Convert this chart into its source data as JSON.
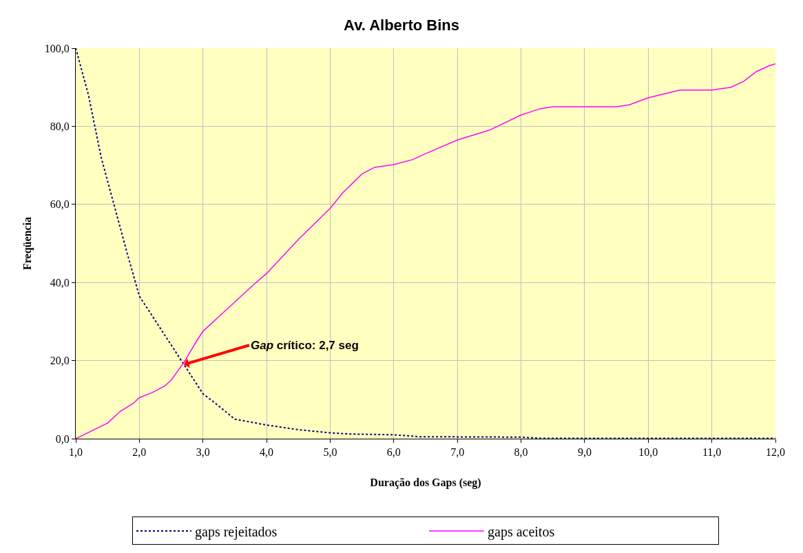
{
  "chart_data": {
    "type": "line",
    "title": "Av. Alberto Bins",
    "xlabel": "Duração dos Gaps (seg)",
    "ylabel": "Freqüencia",
    "xlim": [
      1,
      12
    ],
    "ylim": [
      0,
      100
    ],
    "xticks": [
      {
        "value": 1,
        "label": "1,0"
      },
      {
        "value": 2,
        "label": "2,0"
      },
      {
        "value": 3,
        "label": "3,0"
      },
      {
        "value": 4,
        "label": "4,0"
      },
      {
        "value": 5,
        "label": "5,0"
      },
      {
        "value": 6,
        "label": "6,0"
      },
      {
        "value": 7,
        "label": "7,0"
      },
      {
        "value": 8,
        "label": "8,0"
      },
      {
        "value": 9,
        "label": "9,0"
      },
      {
        "value": 10,
        "label": "10,0"
      },
      {
        "value": 11,
        "label": "11,0"
      },
      {
        "value": 12,
        "label": "12,0"
      }
    ],
    "yticks": [
      {
        "value": 0,
        "label": "0,0"
      },
      {
        "value": 20,
        "label": "20,0"
      },
      {
        "value": 40,
        "label": "40,0"
      },
      {
        "value": 60,
        "label": "60,0"
      },
      {
        "value": 80,
        "label": "80,0"
      },
      {
        "value": 100,
        "label": "100,0"
      }
    ],
    "grid": true,
    "legend": "bottom",
    "marker": "none",
    "series": [
      {
        "name": "gaps rejeitados",
        "color": "#000080",
        "line_style": "dotted",
        "x": [
          1.0,
          1.2,
          1.4,
          1.6,
          1.8,
          2.0,
          2.3,
          2.5,
          2.7,
          2.9,
          3.0,
          3.2,
          3.5,
          4.0,
          4.5,
          5.0,
          5.3,
          6.0,
          6.4,
          8.0,
          8.3,
          12.0
        ],
        "values": [
          100,
          88,
          72,
          60,
          48,
          36.5,
          29,
          24,
          19,
          14,
          11.5,
          9,
          5,
          3.5,
          2.3,
          1.5,
          1.2,
          1,
          0.5,
          0.4,
          0.1,
          0.1
        ]
      },
      {
        "name": "gaps aceitos",
        "color": "#ff00ff",
        "line_style": "solid",
        "x": [
          1.0,
          1.5,
          1.7,
          1.9,
          2.0,
          2.2,
          2.4,
          2.5,
          2.7,
          2.9,
          3.0,
          3.3,
          3.5,
          3.8,
          4.0,
          4.5,
          5.0,
          5.2,
          5.5,
          5.7,
          6.0,
          6.3,
          6.5,
          7.0,
          7.3,
          7.5,
          8.0,
          8.3,
          8.5,
          9.0,
          9.5,
          9.7,
          10.0,
          10.5,
          11.0,
          11.3,
          11.5,
          11.7,
          11.9,
          12.0
        ],
        "values": [
          0,
          4,
          7,
          9,
          10.5,
          11.8,
          13.5,
          15,
          19.5,
          25,
          27.5,
          32,
          35,
          39.5,
          42.3,
          51,
          59,
          63,
          67.8,
          69.5,
          70.2,
          71.5,
          73,
          76.5,
          78,
          79,
          82.9,
          84.5,
          85,
          85,
          85,
          85.5,
          87.3,
          89.3,
          89.3,
          90,
          91.5,
          94,
          95.5,
          96
        ]
      }
    ],
    "annotations": [
      {
        "text": "Gap crítico: 2,7 seg",
        "x": 2.7,
        "y": 19
      }
    ]
  }
}
